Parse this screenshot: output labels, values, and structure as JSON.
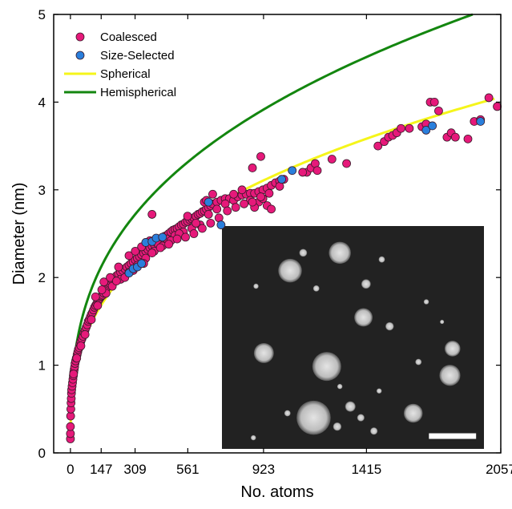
{
  "chart_data": {
    "type": "scatter",
    "xlabel": "No. atoms",
    "ylabel": "Diameter (nm)",
    "xlim": [
      -80,
      2057
    ],
    "ylim": [
      0,
      5
    ],
    "x_ticks": [
      0,
      147,
      309,
      561,
      923,
      1415,
      2057
    ],
    "y_ticks": [
      0,
      1,
      2,
      3,
      4,
      5
    ],
    "grid": false,
    "legend_position": "top-left",
    "colors": {
      "coalesced": "#e6197a",
      "size_selected": "#2a7fdc",
      "spherical": "#f5f51a",
      "hemispherical": "#13860f",
      "inset_background": "#222222"
    },
    "series": [
      {
        "name": "Coalesced",
        "kind": "scatter",
        "points": [
          [
            0,
            0.16
          ],
          [
            0,
            0.22
          ],
          [
            0,
            0.3
          ],
          [
            1,
            0.42
          ],
          [
            2,
            0.5
          ],
          [
            3,
            0.57
          ],
          [
            4,
            0.62
          ],
          [
            5,
            0.68
          ],
          [
            6,
            0.72
          ],
          [
            8,
            0.76
          ],
          [
            10,
            0.8
          ],
          [
            12,
            0.84
          ],
          [
            14,
            0.88
          ],
          [
            16,
            0.92
          ],
          [
            18,
            0.95
          ],
          [
            20,
            0.98
          ],
          [
            22,
            1.02
          ],
          [
            25,
            1.05
          ],
          [
            28,
            1.08
          ],
          [
            32,
            1.12
          ],
          [
            35,
            1.15
          ],
          [
            38,
            1.18
          ],
          [
            42,
            1.2
          ],
          [
            46,
            1.24
          ],
          [
            50,
            1.27
          ],
          [
            55,
            1.3
          ],
          [
            60,
            1.33
          ],
          [
            65,
            1.37
          ],
          [
            70,
            1.4
          ],
          [
            75,
            1.43
          ],
          [
            80,
            1.46
          ],
          [
            85,
            1.5
          ],
          [
            90,
            1.52
          ],
          [
            95,
            1.55
          ],
          [
            100,
            1.58
          ],
          [
            105,
            1.6
          ],
          [
            110,
            1.63
          ],
          [
            115,
            1.66
          ],
          [
            120,
            1.68
          ],
          [
            125,
            1.7
          ],
          [
            130,
            1.72
          ],
          [
            135,
            1.74
          ],
          [
            140,
            1.76
          ],
          [
            145,
            1.78
          ],
          [
            150,
            1.79
          ],
          [
            155,
            1.8
          ],
          [
            160,
            1.82
          ],
          [
            165,
            1.85
          ],
          [
            170,
            1.87
          ],
          [
            175,
            1.89
          ],
          [
            180,
            1.9
          ],
          [
            185,
            1.92
          ],
          [
            190,
            1.93
          ],
          [
            195,
            1.95
          ],
          [
            200,
            1.97
          ],
          [
            210,
            1.99
          ],
          [
            220,
            2.02
          ],
          [
            230,
            2.04
          ],
          [
            240,
            2.06
          ],
          [
            250,
            2.08
          ],
          [
            260,
            2.1
          ],
          [
            270,
            2.12
          ],
          [
            280,
            2.14
          ],
          [
            290,
            2.16
          ],
          [
            300,
            2.18
          ],
          [
            310,
            2.2
          ],
          [
            320,
            2.22
          ],
          [
            330,
            2.24
          ],
          [
            340,
            2.26
          ],
          [
            350,
            2.28
          ],
          [
            360,
            2.3
          ],
          [
            370,
            2.32
          ],
          [
            380,
            2.34
          ],
          [
            390,
            2.36
          ],
          [
            400,
            2.38
          ],
          [
            410,
            2.4
          ],
          [
            420,
            2.42
          ],
          [
            430,
            2.44
          ],
          [
            440,
            2.45
          ],
          [
            450,
            2.47
          ],
          [
            460,
            2.48
          ],
          [
            470,
            2.5
          ],
          [
            480,
            2.52
          ],
          [
            490,
            2.54
          ],
          [
            500,
            2.55
          ],
          [
            510,
            2.56
          ],
          [
            520,
            2.58
          ],
          [
            530,
            2.6
          ],
          [
            540,
            2.61
          ],
          [
            550,
            2.63
          ],
          [
            560,
            2.64
          ],
          [
            570,
            2.66
          ],
          [
            580,
            2.67
          ],
          [
            590,
            2.68
          ],
          [
            600,
            2.7
          ],
          [
            610,
            2.72
          ],
          [
            620,
            2.73
          ],
          [
            630,
            2.75
          ],
          [
            640,
            2.76
          ],
          [
            650,
            2.78
          ],
          [
            660,
            2.8
          ],
          [
            670,
            2.82
          ],
          [
            680,
            2.84
          ],
          [
            700,
            2.86
          ],
          [
            720,
            2.88
          ],
          [
            740,
            2.9
          ],
          [
            760,
            2.9
          ],
          [
            780,
            2.88
          ],
          [
            800,
            2.92
          ],
          [
            820,
            2.94
          ],
          [
            840,
            2.95
          ],
          [
            860,
            2.96
          ],
          [
            880,
            2.96
          ],
          [
            900,
            2.98
          ],
          [
            920,
            3.0
          ],
          [
            940,
            3.02
          ],
          [
            960,
            3.05
          ],
          [
            980,
            3.08
          ],
          [
            1000,
            3.1
          ],
          [
            1020,
            3.12
          ],
          [
            160,
            1.95
          ],
          [
            190,
            2.0
          ],
          [
            230,
            2.12
          ],
          [
            280,
            2.25
          ],
          [
            310,
            2.3
          ],
          [
            340,
            2.35
          ],
          [
            380,
            2.42
          ],
          [
            420,
            2.38
          ],
          [
            460,
            2.44
          ],
          [
            500,
            2.48
          ],
          [
            540,
            2.52
          ],
          [
            580,
            2.56
          ],
          [
            620,
            2.6
          ],
          [
            660,
            2.72
          ],
          [
            700,
            2.78
          ],
          [
            740,
            2.84
          ],
          [
            780,
            2.95
          ],
          [
            820,
            3.0
          ],
          [
            860,
            2.88
          ],
          [
            900,
            2.86
          ],
          [
            940,
            2.82
          ],
          [
            960,
            2.78
          ],
          [
            880,
            2.8
          ],
          [
            920,
            2.9
          ],
          [
            640,
            2.86
          ],
          [
            680,
            2.95
          ],
          [
            560,
            2.7
          ],
          [
            600,
            2.62
          ],
          [
            520,
            2.5
          ],
          [
            480,
            2.42
          ],
          [
            440,
            2.36
          ],
          [
            400,
            2.3
          ],
          [
            360,
            2.22
          ],
          [
            320,
            2.14
          ],
          [
            280,
            2.06
          ],
          [
            240,
            1.98
          ],
          [
            200,
            1.9
          ],
          [
            170,
            1.82
          ],
          [
            130,
            1.68
          ],
          [
            100,
            1.52
          ],
          [
            70,
            1.35
          ],
          [
            50,
            1.22
          ],
          [
            30,
            1.08
          ],
          [
            15,
            0.9
          ],
          [
            120,
            1.78
          ],
          [
            150,
            1.86
          ],
          [
            220,
            1.96
          ],
          [
            260,
            2.0
          ],
          [
            300,
            2.08
          ],
          [
            350,
            2.16
          ],
          [
            390,
            2.28
          ],
          [
            430,
            2.34
          ],
          [
            470,
            2.38
          ],
          [
            510,
            2.44
          ],
          [
            550,
            2.46
          ],
          [
            590,
            2.5
          ],
          [
            630,
            2.56
          ],
          [
            670,
            2.62
          ],
          [
            710,
            2.68
          ],
          [
            750,
            2.76
          ],
          [
            790,
            2.8
          ],
          [
            830,
            2.84
          ],
          [
            870,
            2.86
          ],
          [
            910,
            2.92
          ],
          [
            950,
            2.96
          ],
          [
            390,
            2.72
          ],
          [
            650,
            2.88
          ],
          [
            870,
            3.25
          ],
          [
            910,
            3.38
          ],
          [
            1000,
            3.04
          ],
          [
            1130,
            3.2
          ],
          [
            1150,
            3.25
          ],
          [
            1170,
            3.3
          ],
          [
            1250,
            3.35
          ],
          [
            1320,
            3.3
          ],
          [
            1470,
            3.5
          ],
          [
            1500,
            3.55
          ],
          [
            1520,
            3.6
          ],
          [
            1540,
            3.62
          ],
          [
            1560,
            3.65
          ],
          [
            1580,
            3.7
          ],
          [
            1620,
            3.7
          ],
          [
            1680,
            3.72
          ],
          [
            1700,
            3.75
          ],
          [
            1720,
            4.0
          ],
          [
            1740,
            4.0
          ],
          [
            1760,
            3.9
          ],
          [
            1800,
            3.6
          ],
          [
            1820,
            3.65
          ],
          [
            1840,
            3.6
          ],
          [
            1900,
            3.58
          ],
          [
            1930,
            3.78
          ],
          [
            1960,
            3.8
          ],
          [
            2000,
            4.05
          ],
          [
            2040,
            3.95
          ],
          [
            1110,
            3.2
          ],
          [
            1180,
            3.22
          ]
        ]
      },
      {
        "name": "Size-Selected",
        "kind": "scatter",
        "points": [
          [
            280,
            2.05
          ],
          [
            300,
            2.1
          ],
          [
            320,
            2.12
          ],
          [
            340,
            2.16
          ],
          [
            360,
            2.4
          ],
          [
            390,
            2.41
          ],
          [
            410,
            2.45
          ],
          [
            440,
            2.46
          ],
          [
            660,
            2.86
          ],
          [
            720,
            2.6
          ],
          [
            1010,
            3.12
          ],
          [
            1060,
            3.22
          ],
          [
            1700,
            3.68
          ],
          [
            1730,
            3.73
          ],
          [
            1960,
            3.78
          ]
        ]
      },
      {
        "name": "Spherical",
        "kind": "line",
        "coefficient": 0.3192,
        "exponent": 0.3333
      },
      {
        "name": "Hemispherical",
        "kind": "line",
        "coefficient": 0.4022,
        "exponent": 0.3333
      }
    ]
  }
}
